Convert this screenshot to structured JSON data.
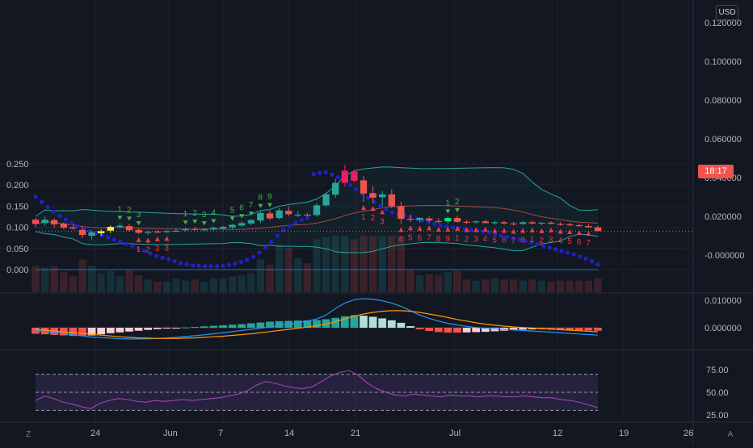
{
  "chart_data": [
    {
      "type": "candlestick",
      "panel": "price",
      "quote_currency": "USD",
      "left_axis_ticks": [
        "0.250",
        "0.200",
        "0.150",
        "0.100",
        "0.050",
        "0.000"
      ],
      "right_axis_ticks": [
        "0.120000",
        "0.100000",
        "0.080000",
        "0.060000",
        "0.040000",
        "0.020000",
        "-0.000000"
      ],
      "x_ticks": [
        "24",
        "Jun",
        "7",
        "14",
        "21",
        "Jul",
        "12",
        "19",
        "26"
      ],
      "last_price_countdown": "18:17",
      "up_color": "#26a69a",
      "down_color": "#ef5350",
      "candles_ohlc": [
        [
          0.118,
          0.122,
          0.1,
          0.108
        ],
        [
          0.11,
          0.125,
          0.104,
          0.118
        ],
        [
          0.117,
          0.121,
          0.099,
          0.107
        ],
        [
          0.109,
          0.112,
          0.096,
          0.099
        ],
        [
          0.1,
          0.106,
          0.094,
          0.097
        ],
        [
          0.094,
          0.103,
          0.075,
          0.082
        ],
        [
          0.08,
          0.092,
          0.07,
          0.088
        ],
        [
          0.086,
          0.095,
          0.08,
          0.091
        ],
        [
          0.092,
          0.104,
          0.087,
          0.101
        ],
        [
          0.101,
          0.11,
          0.098,
          0.104
        ],
        [
          0.103,
          0.108,
          0.09,
          0.093
        ],
        [
          0.094,
          0.097,
          0.084,
          0.087
        ],
        [
          0.088,
          0.092,
          0.083,
          0.089
        ],
        [
          0.09,
          0.093,
          0.086,
          0.088
        ],
        [
          0.089,
          0.094,
          0.087,
          0.091
        ],
        [
          0.091,
          0.098,
          0.088,
          0.092
        ],
        [
          0.093,
          0.099,
          0.091,
          0.096
        ],
        [
          0.096,
          0.101,
          0.092,
          0.094
        ],
        [
          0.093,
          0.097,
          0.09,
          0.096
        ],
        [
          0.095,
          0.102,
          0.092,
          0.099
        ],
        [
          0.097,
          0.104,
          0.094,
          0.101
        ],
        [
          0.1,
          0.108,
          0.096,
          0.106
        ],
        [
          0.104,
          0.114,
          0.101,
          0.11
        ],
        [
          0.109,
          0.12,
          0.105,
          0.117
        ],
        [
          0.116,
          0.138,
          0.11,
          0.134
        ],
        [
          0.133,
          0.14,
          0.117,
          0.121
        ],
        [
          0.122,
          0.145,
          0.118,
          0.14
        ],
        [
          0.139,
          0.15,
          0.126,
          0.131
        ],
        [
          0.13,
          0.138,
          0.124,
          0.13
        ],
        [
          0.13,
          0.134,
          0.125,
          0.128
        ],
        [
          0.129,
          0.157,
          0.125,
          0.152
        ],
        [
          0.152,
          0.182,
          0.148,
          0.178
        ],
        [
          0.177,
          0.215,
          0.17,
          0.205
        ],
        [
          0.205,
          0.248,
          0.196,
          0.234
        ],
        [
          0.232,
          0.237,
          0.205,
          0.21
        ],
        [
          0.211,
          0.222,
          0.16,
          0.18
        ],
        [
          0.181,
          0.198,
          0.158,
          0.17
        ],
        [
          0.171,
          0.186,
          0.15,
          0.178
        ],
        [
          0.178,
          0.19,
          0.145,
          0.15
        ],
        [
          0.15,
          0.16,
          0.108,
          0.12
        ],
        [
          0.12,
          0.13,
          0.112,
          0.118
        ],
        [
          0.117,
          0.124,
          0.111,
          0.122
        ],
        [
          0.121,
          0.126,
          0.112,
          0.116
        ],
        [
          0.115,
          0.122,
          0.109,
          0.114
        ],
        [
          0.114,
          0.125,
          0.109,
          0.122
        ],
        [
          0.122,
          0.128,
          0.111,
          0.113
        ],
        [
          0.113,
          0.117,
          0.108,
          0.112
        ],
        [
          0.112,
          0.116,
          0.108,
          0.114
        ],
        [
          0.114,
          0.118,
          0.109,
          0.11
        ],
        [
          0.11,
          0.116,
          0.106,
          0.112
        ],
        [
          0.112,
          0.115,
          0.106,
          0.109
        ],
        [
          0.109,
          0.113,
          0.104,
          0.108
        ],
        [
          0.108,
          0.114,
          0.106,
          0.112
        ],
        [
          0.112,
          0.116,
          0.107,
          0.109
        ],
        [
          0.109,
          0.113,
          0.105,
          0.111
        ],
        [
          0.111,
          0.114,
          0.107,
          0.108
        ],
        [
          0.108,
          0.112,
          0.104,
          0.107
        ],
        [
          0.107,
          0.111,
          0.103,
          0.105
        ],
        [
          0.105,
          0.109,
          0.101,
          0.103
        ],
        [
          0.103,
          0.107,
          0.099,
          0.1
        ],
        [
          0.1,
          0.104,
          0.094,
          0.091
        ]
      ],
      "parabolic_sar": [
        0.172,
        0.16,
        0.148,
        0.137,
        0.127,
        0.118,
        0.11,
        0.103,
        0.097,
        0.091,
        0.086,
        0.081,
        0.076,
        0.071,
        0.066,
        0.061,
        0.056,
        0.05,
        0.044,
        0.038,
        0.032,
        0.028,
        0.025,
        0.02,
        0.015,
        0.012,
        0.01,
        0.009,
        0.008,
        0.008,
        0.008,
        0.009,
        0.011,
        0.014,
        0.018,
        0.023,
        0.03,
        0.04,
        0.052,
        0.066,
        0.08,
        0.093,
        0.103,
        0.111,
        0.117,
        0.122,
        0.226,
        0.228,
        0.23,
        0.225,
        0.218,
        0.21,
        0.2,
        0.19,
        0.18,
        0.17,
        0.16,
        0.15,
        0.142,
        0.135,
        0.132,
        0.128,
        0.124,
        0.12,
        0.116,
        0.112,
        0.108,
        0.105,
        0.102,
        0.1,
        0.098,
        0.096,
        0.094,
        0.092,
        0.09,
        0.088,
        0.084,
        0.08,
        0.077,
        0.074,
        0.071,
        0.068,
        0.064,
        0.06,
        0.056,
        0.052,
        0.048,
        0.044,
        0.04,
        0.036,
        0.031,
        0.026,
        0.02,
        0.012
      ],
      "td_sequential_buy_labels": [
        "1",
        "2",
        "3",
        "1",
        "2",
        "3",
        "4",
        "5",
        "6",
        "7",
        "8",
        "9",
        "1",
        "2"
      ],
      "td_sequential_sell_labels": [
        "1",
        "2",
        "3",
        "3",
        "1",
        "2",
        "3",
        "4",
        "5",
        "6",
        "7",
        "8",
        "9",
        "1",
        "2",
        "3",
        "4",
        "5",
        "6",
        "7",
        "8",
        "1",
        "2",
        "3",
        "4",
        "5",
        "6",
        "7"
      ],
      "volume_up_color": "#26a69a",
      "volume_down_color": "#ef5350"
    },
    {
      "type": "histogram+line",
      "panel": "macd",
      "right_axis_ticks": [
        "0.010000",
        "0.000000"
      ],
      "histogram": [
        -0.0022,
        -0.0024,
        -0.0026,
        -0.0028,
        -0.003,
        -0.003,
        -0.0028,
        -0.0024,
        -0.002,
        -0.0017,
        -0.0014,
        -0.0011,
        -0.0008,
        -0.0005,
        -0.0003,
        -0.0001,
        0.0001,
        0.0003,
        0.0005,
        0.0007,
        0.0009,
        0.0011,
        0.0013,
        0.0016,
        0.0019,
        0.0022,
        0.0024,
        0.0025,
        0.0026,
        0.0027,
        0.0028,
        0.0031,
        0.0036,
        0.0042,
        0.0046,
        0.0044,
        0.004,
        0.0034,
        0.0027,
        0.0018,
        0.0006,
        -0.0006,
        -0.0012,
        -0.0016,
        -0.0018,
        -0.0018,
        -0.0017,
        -0.0016,
        -0.0015,
        -0.0013,
        -0.0011,
        -0.0009,
        -0.0007,
        -0.0006,
        -0.0006,
        -0.0007,
        -0.0008,
        -0.0009,
        -0.001,
        -0.001,
        -0.0011
      ],
      "macd_line": [
        -0.001,
        -0.0014,
        -0.0018,
        -0.0022,
        -0.0026,
        -0.003,
        -0.0034,
        -0.0036,
        -0.0038,
        -0.004,
        -0.0041,
        -0.0041,
        -0.004,
        -0.0039,
        -0.0037,
        -0.0035,
        -0.0032,
        -0.0029,
        -0.0026,
        -0.0022,
        -0.0018,
        -0.0014,
        -0.001,
        -0.0006,
        -0.0002,
        0.0003,
        0.0008,
        0.0013,
        0.0018,
        0.0024,
        0.0032,
        0.0046,
        0.007,
        0.009,
        0.0102,
        0.0106,
        0.0104,
        0.0098,
        0.009,
        0.0078,
        0.0062,
        0.0046,
        0.0034,
        0.0024,
        0.0016,
        0.001,
        0.0005,
        0.0001,
        -0.0002,
        -0.0004,
        -0.0006,
        -0.0008,
        -0.001,
        -0.0012,
        -0.0014,
        -0.0016,
        -0.0018,
        -0.0021,
        -0.0023,
        -0.0025,
        -0.0027
      ],
      "signal_line": [
        -0.0006,
        -0.0009,
        -0.0012,
        -0.0015,
        -0.0018,
        -0.0021,
        -0.0024,
        -0.0027,
        -0.003,
        -0.0033,
        -0.0035,
        -0.0037,
        -0.0038,
        -0.0039,
        -0.0039,
        -0.0039,
        -0.0038,
        -0.0037,
        -0.0035,
        -0.0033,
        -0.0031,
        -0.0028,
        -0.0025,
        -0.0022,
        -0.0018,
        -0.0014,
        -0.001,
        -0.0006,
        -0.0002,
        0.0002,
        0.0007,
        0.0013,
        0.0022,
        0.0032,
        0.0042,
        0.005,
        0.0056,
        0.006,
        0.0062,
        0.0062,
        0.006,
        0.0056,
        0.005,
        0.0044,
        0.0037,
        0.003,
        0.0024,
        0.0018,
        0.0013,
        0.0009,
        0.0006,
        0.0003,
        0.0001,
        -0.0001,
        -0.0003,
        -0.0005,
        -0.0007,
        -0.0009,
        -0.0011,
        -0.0013,
        -0.0015
      ],
      "macd_color": "#2196f3",
      "signal_color": "#ff9800"
    },
    {
      "type": "line",
      "panel": "rsi",
      "right_axis_ticks": [
        "75.00",
        "50.00",
        "25.00"
      ],
      "band_levels": [
        70,
        50,
        30
      ],
      "values": [
        41,
        46,
        43,
        39,
        37,
        34,
        32,
        38,
        41,
        43,
        42,
        40,
        39,
        41,
        40,
        41,
        42,
        41,
        42,
        43,
        44,
        46,
        48,
        52,
        58,
        62,
        60,
        57,
        55,
        54,
        56,
        62,
        68,
        72,
        74,
        69,
        60,
        54,
        50,
        47,
        46,
        48,
        47,
        46,
        45,
        47,
        46,
        46,
        45,
        46,
        46,
        45,
        45,
        46,
        45,
        44,
        44,
        42,
        41,
        39,
        36,
        33
      ],
      "line_color": "#ab47bc"
    }
  ],
  "toolbar": {
    "left_corner": "Z",
    "right_corner": "A"
  },
  "colors": {
    "background": "#131722",
    "grid": "#1e222d",
    "up": "#26a69a",
    "down": "#ef5350",
    "sar": "#1e22c8",
    "bollinger": "#26a69a",
    "bb_basis": "#a34a4a",
    "buy_setup": "#4caf50",
    "sell_setup": "#f23645",
    "highlight_yellow": "#ffeb3b",
    "highlight_green": "#00e676",
    "highlight_pink": "#e91e63"
  }
}
